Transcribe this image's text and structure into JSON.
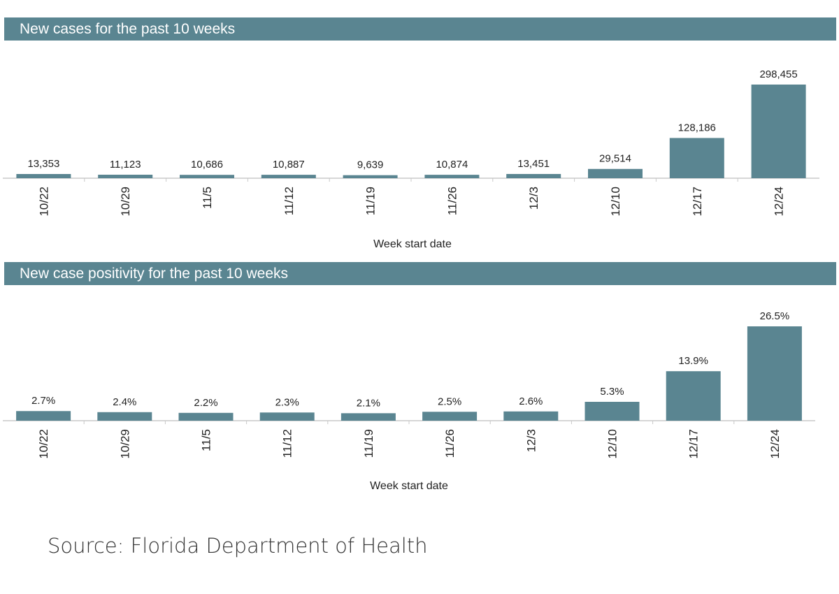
{
  "colors": {
    "header_bg": "#5a8591",
    "bar": "#5a8591",
    "axis": "#c8c8c8",
    "text": "#222222"
  },
  "chart_data": [
    {
      "type": "bar",
      "title": "New cases for the past 10 weeks",
      "xlabel": "Week start date",
      "ylabel": "",
      "ylim": [
        0,
        298455
      ],
      "categories": [
        "10/22",
        "10/29",
        "11/5",
        "11/12",
        "11/19",
        "11/26",
        "12/3",
        "12/10",
        "12/17",
        "12/24"
      ],
      "values": [
        13353,
        11123,
        10686,
        10887,
        9639,
        10874,
        13451,
        29514,
        128186,
        298455
      ],
      "labels": [
        "13,353",
        "11,123",
        "10,686",
        "10,887",
        "9,639",
        "10,874",
        "13,451",
        "29,514",
        "128,186",
        "298,455"
      ],
      "grid": false
    },
    {
      "type": "bar",
      "title": "New case positivity for the past 10 weeks",
      "xlabel": "Week start date",
      "ylabel": "",
      "ylim": [
        0,
        26.5
      ],
      "categories": [
        "10/22",
        "10/29",
        "11/5",
        "11/12",
        "11/19",
        "11/26",
        "12/3",
        "12/10",
        "12/17",
        "12/24"
      ],
      "values": [
        2.7,
        2.4,
        2.2,
        2.3,
        2.1,
        2.5,
        2.6,
        5.3,
        13.9,
        26.5
      ],
      "labels": [
        "2.7%",
        "2.4%",
        "2.2%",
        "2.3%",
        "2.1%",
        "2.5%",
        "2.6%",
        "5.3%",
        "13.9%",
        "26.5%"
      ],
      "grid": false
    }
  ],
  "source": "Source: Florida Department of Health"
}
